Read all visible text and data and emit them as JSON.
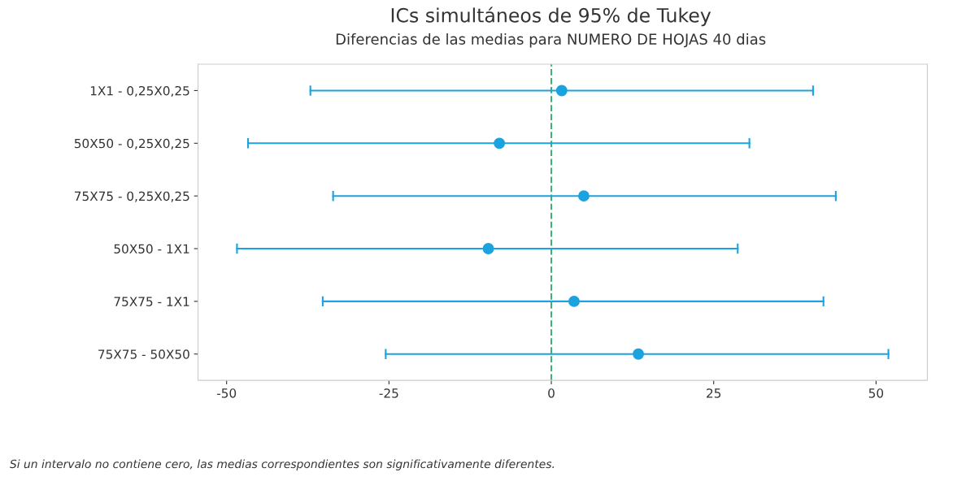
{
  "chart_data": {
    "type": "scatter",
    "orientation": "horizontal",
    "title": "ICs simultáneos de 95% de Tukey",
    "subtitle": "Diferencias de las medias para NUMERO DE HOJAS 40 dias",
    "categories": [
      "1X1 - 0,25X0,25",
      "50X50 - 0,25X0,25",
      "75X75 - 0,25X0,25",
      "50X50 - 1X1",
      "75X75 - 1X1",
      "75X75 - 50X50"
    ],
    "values": [
      1.6,
      -8.0,
      5.0,
      -9.7,
      3.5,
      13.4
    ],
    "errors": [
      [
        -37.1,
        40.3
      ],
      [
        -46.7,
        30.5
      ],
      [
        -33.6,
        43.8
      ],
      [
        -48.4,
        28.7
      ],
      [
        -35.2,
        41.9
      ],
      [
        -25.5,
        51.9
      ]
    ],
    "color": "#1ba3e0",
    "marker": "circle",
    "grid": false,
    "xlim": [
      -54.4,
      57.9
    ],
    "xticks": [
      -50,
      -25,
      0,
      25,
      50
    ],
    "ref_lines": [
      {
        "axis": "x",
        "value": 0,
        "color": "#3cb371",
        "line_style": "dashed"
      }
    ],
    "annotations": [
      "Si un intervalo no contiene cero, las medias correspondientes son significativamente diferentes."
    ]
  }
}
